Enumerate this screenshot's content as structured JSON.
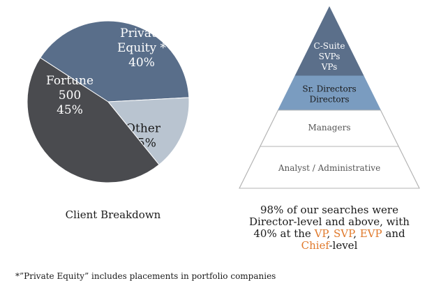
{
  "chart_data": [
    {
      "type": "pie",
      "title": "Client Breakdown",
      "slices": [
        {
          "label_lines": [
            "Private",
            "Equity *",
            "40%"
          ],
          "value": 40,
          "color": "#596e8a"
        },
        {
          "label_lines": [
            "Other",
            "15%"
          ],
          "value": 15,
          "color": "#b9c4d0"
        },
        {
          "label_lines": [
            "Fortune",
            "500",
            "45%"
          ],
          "value": 45,
          "color": "#4a4b4f"
        }
      ]
    },
    {
      "type": "pyramid",
      "tiers": [
        {
          "lines": [
            "C-Suite",
            "SVPs",
            "VPs"
          ],
          "color": "#5b6f8a",
          "text_color": "#ffffff"
        },
        {
          "lines": [
            "Sr. Directors",
            "Directors"
          ],
          "color": "#7a9cc0",
          "text_color": "#1a1a1a"
        },
        {
          "lines": [
            "Managers"
          ],
          "color": "#ffffff",
          "text_color": "#555555"
        },
        {
          "lines": [
            "Analyst / Administrative"
          ],
          "color": "#ffffff",
          "text_color": "#555555"
        }
      ],
      "caption": {
        "line1": "98% of our searches were",
        "line2": "Director-level and above, with",
        "line3_prefix": "40% at the ",
        "vp": "VP",
        "sep1": ", ",
        "svp": "SVP",
        "sep2": ", ",
        "evp": "EVP",
        "line3_suffix": " and",
        "chief": "Chief",
        "line4_suffix": "-level"
      }
    }
  ],
  "footnote": "*”Private Equity” includes placements in portfolio companies",
  "colors": {
    "accent": "#e0792b",
    "outline": "#b3b3b3"
  }
}
